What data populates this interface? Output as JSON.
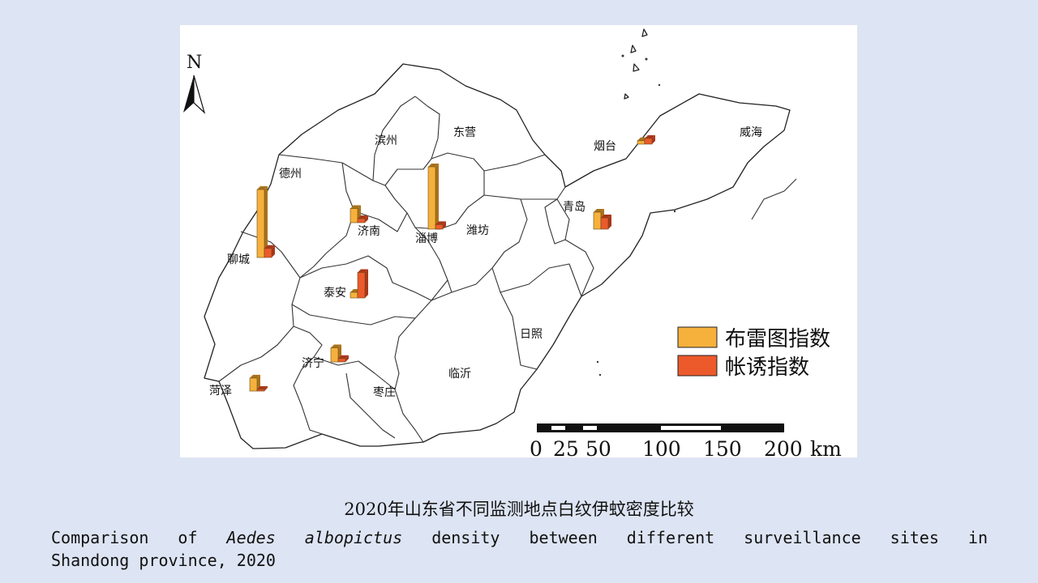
{
  "map": {
    "north_label": "N",
    "cities": [
      {
        "name": "德州",
        "id": "dezhou"
      },
      {
        "name": "滨州",
        "id": "binzhou"
      },
      {
        "name": "东营",
        "id": "dongying"
      },
      {
        "name": "烟台",
        "id": "yantai"
      },
      {
        "name": "威海",
        "id": "weihai"
      },
      {
        "name": "聊城",
        "id": "liaocheng"
      },
      {
        "name": "济南",
        "id": "jinan"
      },
      {
        "name": "淄博",
        "id": "zibo"
      },
      {
        "name": "潍坊",
        "id": "weifang"
      },
      {
        "name": "青岛",
        "id": "qingdao"
      },
      {
        "name": "泰安",
        "id": "taian"
      },
      {
        "name": "日照",
        "id": "rizhao"
      },
      {
        "name": "济宁",
        "id": "jining"
      },
      {
        "name": "临沂",
        "id": "linyi"
      },
      {
        "name": "菏泽",
        "id": "heze"
      },
      {
        "name": "枣庄",
        "id": "zaozhuang"
      }
    ],
    "legend": {
      "items": [
        {
          "label": "布雷图指数",
          "color": "#f6b13c"
        },
        {
          "label": "帐诱指数",
          "color": "#ec5a2c"
        }
      ]
    },
    "scale_bar": {
      "ticks": [
        "0",
        "25",
        "50",
        "100",
        "150",
        "200"
      ],
      "unit": "km"
    },
    "colors": {
      "breteau": "#f6b13c",
      "net_trap": "#ec5a2c",
      "background": "#dde4f3"
    }
  },
  "chart_data": {
    "type": "bar",
    "categories": [
      "聊城",
      "淄博",
      "泰安",
      "青岛",
      "济南",
      "烟台",
      "济宁",
      "菏泽"
    ],
    "series": [
      {
        "name": "布雷图指数",
        "values": [
          12,
          11,
          1.0,
          3.0,
          2.5,
          0.6,
          2.5,
          2.3
        ]
      },
      {
        "name": "帐诱指数",
        "values": [
          1.6,
          0.8,
          4.5,
          2.0,
          0.7,
          1.0,
          0.6,
          0.3
        ]
      }
    ]
  },
  "captions": {
    "chinese": "2020年山东省不同监测地点白纹伊蚊密度比较",
    "english_prefix": "Comparison of",
    "english_italic": "Aedes albopictus",
    "english_suffix": "density between different surveillance sites in",
    "english_line2": "Shandong province, 2020"
  }
}
